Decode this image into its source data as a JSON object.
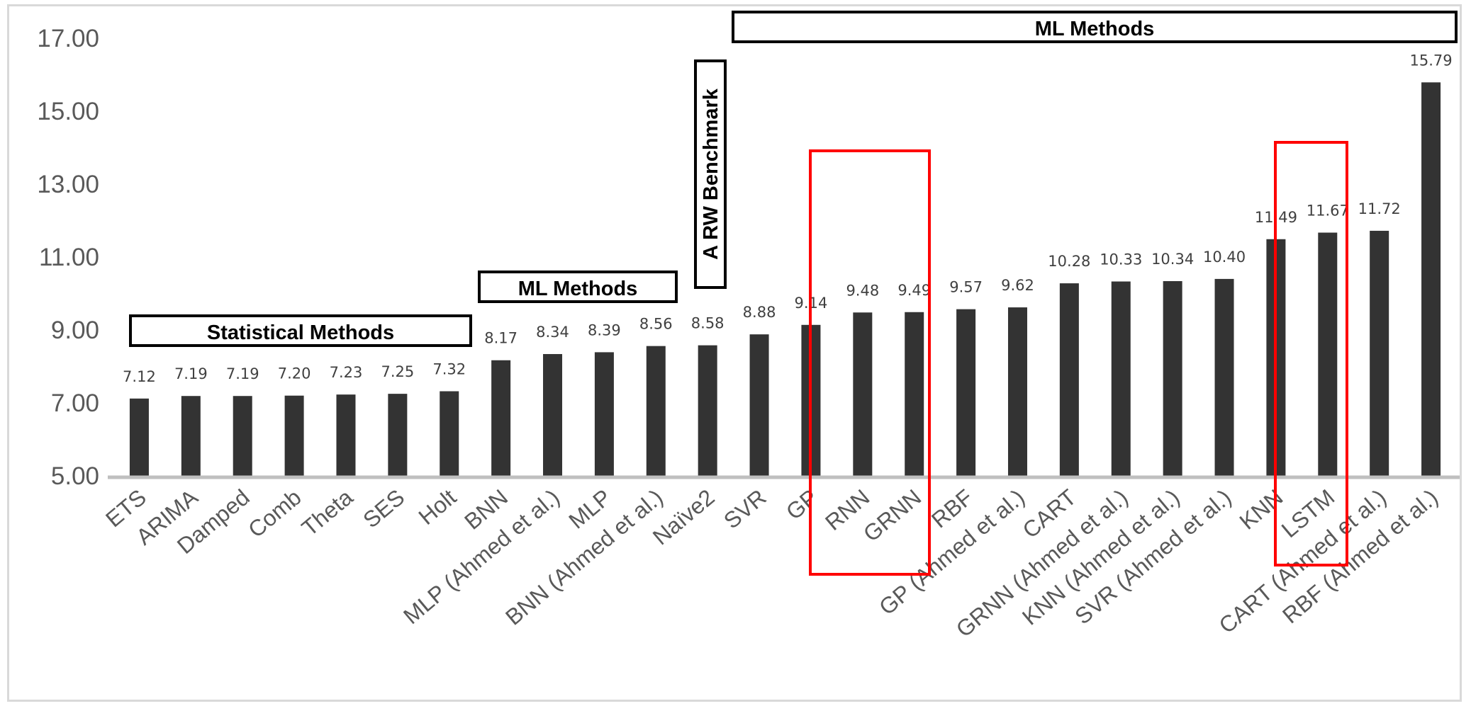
{
  "chart_data": {
    "type": "bar",
    "categories": [
      "ETS",
      "ARIMA",
      "Damped",
      "Comb",
      "Theta",
      "SES",
      "Holt",
      "BNN",
      "MLP (Ahmed et al.)",
      "MLP",
      "BNN  (Ahmed et al.)",
      "Naïve2",
      "SVR",
      "GP",
      "RNN",
      "GRNN",
      "RBF",
      "GP  (Ahmed et al.)",
      "CART",
      "GRNN  (Ahmed et al.)",
      "KNN  (Ahmed et al.)",
      "SVR  (Ahmed et al.)",
      "KNN",
      "LSTM",
      "CART  (Ahmed et al.)",
      "RBF  (Ahmed et al.)"
    ],
    "values": [
      7.12,
      7.19,
      7.19,
      7.2,
      7.23,
      7.25,
      7.32,
      8.17,
      8.34,
      8.39,
      8.56,
      8.58,
      8.88,
      9.14,
      9.48,
      9.49,
      9.57,
      9.62,
      10.28,
      10.33,
      10.34,
      10.4,
      11.49,
      11.67,
      11.72,
      15.79
    ],
    "value_labels": [
      "7.12",
      "7.19",
      "7.19",
      "7.20",
      "7.23",
      "7.25",
      "7.32",
      "8.17",
      "8.34",
      "8.39",
      "8.56",
      "8.58",
      "8.88",
      "9.14",
      "9.48",
      "9.49",
      "9.57",
      "9.62",
      "10.28",
      "10.33",
      "10.34",
      "10.40",
      "11.49",
      "11.67",
      "11.72",
      "15.79"
    ],
    "yticks": [
      "5.00",
      "7.00",
      "9.00",
      "11.00",
      "13.00",
      "15.00",
      "17.00"
    ],
    "ylim": [
      5,
      17
    ],
    "bar_color": "#333333",
    "axis_color": "#bfbfbf",
    "grid": false,
    "legend": "none",
    "group_labels": [
      {
        "text": "Statistical Methods",
        "orientation": "horizontal"
      },
      {
        "text": "ML Methods",
        "orientation": "horizontal"
      },
      {
        "text": "A RW Benchmark",
        "orientation": "vertical"
      },
      {
        "text": "ML Methods",
        "orientation": "horizontal"
      }
    ],
    "highlight_color": "#ff0000",
    "highlights": [
      {
        "categories": [
          "RNN",
          "GRNN"
        ]
      },
      {
        "categories": [
          "LSTM"
        ]
      }
    ]
  }
}
